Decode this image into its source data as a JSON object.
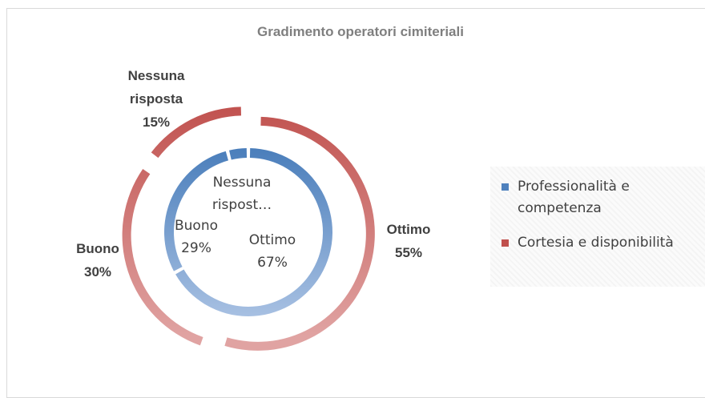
{
  "chart_data": {
    "type": "doughnut",
    "title": "Gradimento operatori cimiteriali",
    "categories": [
      "Ottimo",
      "Buono",
      "Nessuna risposta"
    ],
    "series": [
      {
        "name": "Professionalità e competenza",
        "color": "#4f81bd",
        "values": [
          67,
          29,
          4
        ],
        "labels": [
          "Ottimo",
          "Buono",
          "Nessuna rispost…"
        ],
        "value_labels": [
          "67%",
          "29%",
          null
        ]
      },
      {
        "name": "Cortesia e disponibilità",
        "color": "#c0504d",
        "values": [
          55,
          30,
          15
        ],
        "labels": [
          "Ottimo",
          "Buono",
          "Nessuna risposta"
        ],
        "value_labels": [
          "55%",
          "30%",
          "15%"
        ]
      }
    ],
    "legend": "right"
  }
}
